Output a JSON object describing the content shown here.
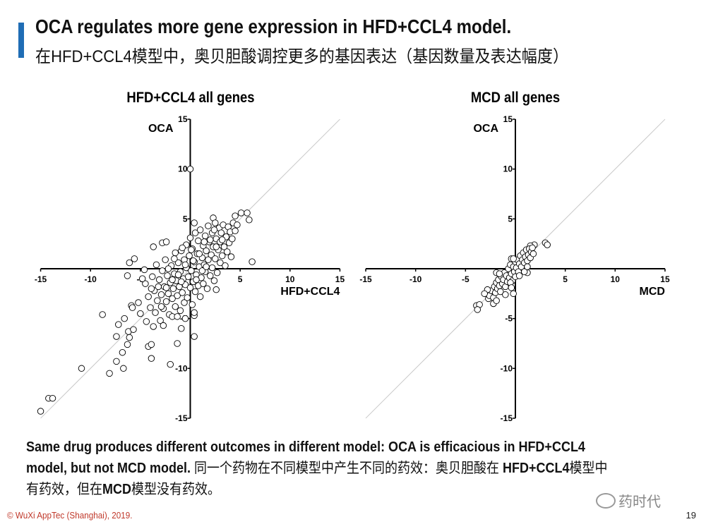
{
  "header": {
    "title": "OCA regulates more gene expression in HFD+CCL4 model.",
    "subtitle": "在HFD+CCL4模型中，奥贝胆酸调控更多的基因表达（基因数量及表达幅度）"
  },
  "colors": {
    "accent": "#1f6db5",
    "footer": "#c0392b",
    "identity_line": "#c8c8c8"
  },
  "chart_data": [
    {
      "type": "scatter",
      "title": "HFD+CCL4 all genes",
      "xlabel": "HFD+CCL4",
      "ylabel": "OCA",
      "xlim": [
        -15,
        15
      ],
      "ylim": [
        -15,
        15
      ],
      "xticks": [
        "-15",
        "-10",
        "-5",
        "5",
        "10",
        "15"
      ],
      "yticks": [
        "15",
        "10",
        "5",
        "-5",
        "-10",
        "-15"
      ],
      "identity_line": true,
      "points": [
        [
          0,
          10
        ],
        [
          -15,
          -14.3
        ],
        [
          -14.2,
          -13
        ],
        [
          -13.8,
          -13
        ],
        [
          -10.9,
          -10
        ],
        [
          -8.1,
          -10.5
        ],
        [
          -6.7,
          -10
        ],
        [
          -7.4,
          -9.3
        ],
        [
          -6.8,
          -8.4
        ],
        [
          -8.8,
          -4.6
        ],
        [
          -2.0,
          -9.6
        ],
        [
          -3.9,
          -9
        ],
        [
          -4.2,
          -7.8
        ],
        [
          -3.9,
          -7.6
        ],
        [
          -1.3,
          -7.5
        ],
        [
          0.4,
          -6.8
        ],
        [
          -0.9,
          -6.0
        ],
        [
          -7.4,
          -6.8
        ],
        [
          -6.3,
          -7.6
        ],
        [
          -6.1,
          -6.9
        ],
        [
          -7.2,
          -5.6
        ],
        [
          -6.6,
          -5.0
        ],
        [
          -5.9,
          -3.7
        ],
        [
          -5.8,
          -3.9
        ],
        [
          -6.2,
          -6.3
        ],
        [
          -5.7,
          -6.1
        ],
        [
          6.2,
          0.7
        ],
        [
          5.1,
          5.6
        ],
        [
          5.7,
          5.6
        ],
        [
          5.9,
          4.9
        ],
        [
          4.5,
          5.3
        ],
        [
          2.3,
          5.1
        ],
        [
          0.4,
          4.6
        ],
        [
          -6.1,
          0.6
        ],
        [
          -5.6,
          1.0
        ],
        [
          -6.3,
          -0.7
        ],
        [
          -3.7,
          2.2
        ],
        [
          -2.8,
          2.6
        ],
        [
          -2.4,
          2.7
        ],
        [
          2.6,
          -2.1
        ],
        [
          0.4,
          -4.7
        ],
        [
          -0.5,
          -5.0
        ],
        [
          -4.5,
          -1.5
        ],
        [
          -4.2,
          -2.8
        ],
        [
          -4,
          -3.9
        ],
        [
          -3.8,
          -0.8
        ],
        [
          -3.6,
          -2.2
        ],
        [
          -3.5,
          -4.4
        ],
        [
          -3.4,
          0.4
        ],
        [
          -3.3,
          -3.2
        ],
        [
          -3.1,
          -1.1
        ],
        [
          -3,
          -5.2
        ],
        [
          -2.9,
          -2.6
        ],
        [
          -2.8,
          -0.2
        ],
        [
          -2.7,
          -4
        ],
        [
          -2.6,
          -1.8
        ],
        [
          -2.5,
          0.9
        ],
        [
          -2.4,
          -3.3
        ],
        [
          -2.3,
          -0.7
        ],
        [
          -2.2,
          -2.5
        ],
        [
          -2.1,
          -4.6
        ],
        [
          -2,
          -1.4
        ],
        [
          -1.9,
          0.3
        ],
        [
          -1.8,
          -3
        ],
        [
          -1.7,
          -2
        ],
        [
          -1.6,
          -0.5
        ],
        [
          -1.5,
          1.6
        ],
        [
          -1.5,
          -3.8
        ],
        [
          -1.4,
          -1.2
        ],
        [
          -1.3,
          -2.7
        ],
        [
          -1.2,
          0.6
        ],
        [
          -1.1,
          -1.8
        ],
        [
          -1,
          -4.2
        ],
        [
          -1,
          -0.3
        ],
        [
          -0.9,
          1.8
        ],
        [
          -0.8,
          -2.4
        ],
        [
          -0.7,
          -1
        ],
        [
          -0.6,
          0.9
        ],
        [
          -0.6,
          -3.4
        ],
        [
          -0.5,
          -1.6
        ],
        [
          -0.4,
          2.4
        ],
        [
          -0.4,
          0.1
        ],
        [
          -0.3,
          -2.9
        ],
        [
          -0.2,
          -0.8
        ],
        [
          -0.1,
          1.3
        ],
        [
          0,
          -1.9
        ],
        [
          0,
          3.1
        ],
        [
          0.1,
          -0.2
        ],
        [
          0.2,
          -3.6
        ],
        [
          0.2,
          2
        ],
        [
          0.3,
          -1.3
        ],
        [
          0.4,
          0.7
        ],
        [
          0.5,
          -2.3
        ],
        [
          0.5,
          3.6
        ],
        [
          0.6,
          -0.6
        ],
        [
          0.7,
          1.5
        ],
        [
          0.8,
          -1.7
        ],
        [
          0.8,
          2.8
        ],
        [
          0.9,
          0.2
        ],
        [
          1,
          -2.8
        ],
        [
          1,
          3.9
        ],
        [
          1.1,
          -0.9
        ],
        [
          1.2,
          1.1
        ],
        [
          1.3,
          2.3
        ],
        [
          1.3,
          -1.5
        ],
        [
          1.4,
          0.4
        ],
        [
          1.5,
          3.3
        ],
        [
          1.5,
          -0.3
        ],
        [
          1.6,
          1.8
        ],
        [
          1.7,
          -2
        ],
        [
          1.8,
          0.9
        ],
        [
          1.8,
          4.3
        ],
        [
          1.9,
          2.7
        ],
        [
          2,
          -0.7
        ],
        [
          2.1,
          1.4
        ],
        [
          2.2,
          3.6
        ],
        [
          2.2,
          0.1
        ],
        [
          2.3,
          2.2
        ],
        [
          2.4,
          -1.2
        ],
        [
          2.5,
          4.6
        ],
        [
          2.5,
          1
        ],
        [
          2.6,
          3
        ],
        [
          2.7,
          -0.4
        ],
        [
          2.8,
          1.9
        ],
        [
          2.9,
          4.1
        ],
        [
          3,
          0.6
        ],
        [
          3,
          2.7
        ],
        [
          3.1,
          3.6
        ],
        [
          3.2,
          1.3
        ],
        [
          3.3,
          4.4
        ],
        [
          3.4,
          2.2
        ],
        [
          3.5,
          0.3
        ],
        [
          3.6,
          3.2
        ],
        [
          3.7,
          1.7
        ],
        [
          3.8,
          4.2
        ],
        [
          3.9,
          2.6
        ],
        [
          4,
          3.7
        ],
        [
          4.1,
          1.2
        ],
        [
          4.2,
          3
        ],
        [
          4.3,
          4.6
        ],
        [
          4.5,
          3.8
        ],
        [
          4.7,
          4.4
        ],
        [
          -3.9,
          -2
        ],
        [
          -3.2,
          -1.8
        ],
        [
          -2.4,
          -1.9
        ],
        [
          -1.8,
          -1.1
        ],
        [
          -1.2,
          -0.6
        ],
        [
          -0.5,
          0.4
        ],
        [
          0.3,
          0.8
        ],
        [
          0.9,
          1.5
        ],
        [
          1.4,
          2.7
        ],
        [
          2,
          2.9
        ],
        [
          2.6,
          2.2
        ],
        [
          3.2,
          2.9
        ],
        [
          -2.2,
          0
        ],
        [
          -1.6,
          1
        ],
        [
          -0.9,
          -1.3
        ],
        [
          0.6,
          -1.1
        ],
        [
          1.2,
          -0.2
        ],
        [
          -4.4,
          -5.3
        ],
        [
          -3.7,
          -5.8
        ],
        [
          -2.7,
          -5.7
        ],
        [
          -1.8,
          -4.8
        ],
        [
          0.4,
          -4.4
        ],
        [
          -5.2,
          -3.4
        ],
        [
          -5,
          -4.5
        ],
        [
          -4.8,
          -1
        ],
        [
          -4.6,
          -0.1
        ],
        [
          1.6,
          0.2
        ],
        [
          0.1,
          1.9
        ],
        [
          -0.8,
          2.1
        ],
        [
          2.4,
          3.9
        ],
        [
          -2.9,
          -3.8
        ],
        [
          -1.3,
          -4.8
        ]
      ]
    },
    {
      "type": "scatter",
      "title": "MCD all genes",
      "xlabel": "MCD",
      "ylabel": "OCA",
      "xlim": [
        -15,
        15
      ],
      "ylim": [
        -15,
        15
      ],
      "xticks": [
        "-15",
        "-10",
        "-5",
        "5",
        "10",
        "15"
      ],
      "yticks": [
        "15",
        "10",
        "5",
        "-5",
        "-10",
        "-15"
      ],
      "identity_line": true,
      "points": [
        [
          3.0,
          2.6
        ],
        [
          3.2,
          2.4
        ],
        [
          -3.9,
          -3.7
        ],
        [
          -3.6,
          -3.6
        ],
        [
          -3.8,
          -4.1
        ],
        [
          1.9,
          2.4
        ],
        [
          1.5,
          2.3
        ],
        [
          -0.2,
          -2.5
        ],
        [
          -2.2,
          -3.5
        ],
        [
          -2.9,
          -2.5
        ],
        [
          -2.7,
          -3.0
        ],
        [
          -1.9,
          -0.4
        ],
        [
          1.2,
          -0.4
        ],
        [
          -0.4,
          1.0
        ],
        [
          -2.6,
          -2.7
        ],
        [
          -2.4,
          -2.2
        ],
        [
          -2.2,
          -2.9
        ],
        [
          -2.1,
          -1.8
        ],
        [
          -2,
          -2.4
        ],
        [
          -1.9,
          -1.4
        ],
        [
          -1.8,
          -2
        ],
        [
          -1.7,
          -1.1
        ],
        [
          -1.6,
          -1.7
        ],
        [
          -1.5,
          -2.3
        ],
        [
          -1.4,
          -0.8
        ],
        [
          -1.3,
          -1.5
        ],
        [
          -1.2,
          -1.1
        ],
        [
          -1.1,
          -0.4
        ],
        [
          -1,
          -1.8
        ],
        [
          -0.9,
          -0.7
        ],
        [
          -0.8,
          -1.3
        ],
        [
          -0.7,
          0
        ],
        [
          -0.6,
          -0.9
        ],
        [
          -0.5,
          0.4
        ],
        [
          -0.4,
          -0.5
        ],
        [
          -0.3,
          -1.2
        ],
        [
          -0.2,
          0.2
        ],
        [
          -0.1,
          -0.3
        ],
        [
          0,
          0.7
        ],
        [
          0,
          -0.8
        ],
        [
          0.1,
          0.1
        ],
        [
          0.2,
          0.9
        ],
        [
          0.3,
          -0.3
        ],
        [
          0.4,
          0.5
        ],
        [
          0.5,
          1.3
        ],
        [
          0.6,
          0.2
        ],
        [
          0.7,
          0.9
        ],
        [
          0.8,
          1.6
        ],
        [
          0.9,
          0.6
        ],
        [
          1,
          1.2
        ],
        [
          1.1,
          1.9
        ],
        [
          1.2,
          0.8
        ],
        [
          1.3,
          1.4
        ],
        [
          1.4,
          2
        ],
        [
          1.5,
          1.1
        ],
        [
          1.6,
          1.7
        ],
        [
          1.7,
          2.1
        ],
        [
          1.8,
          1.5
        ],
        [
          0.4,
          -0.7
        ],
        [
          -0.5,
          -1.4
        ],
        [
          -1.6,
          -0.5
        ],
        [
          0.9,
          -0.3
        ],
        [
          -0.2,
          1
        ],
        [
          1.2,
          0.2
        ],
        [
          -2.8,
          -2.1
        ],
        [
          -3.1,
          -2.5
        ],
        [
          -1.9,
          -3.2
        ],
        [
          -1,
          -2.6
        ],
        [
          -0.4,
          -1.9
        ]
      ]
    }
  ],
  "conclusion": {
    "en": "Same drug produces different outcomes in different model: OCA is efficacious in HFD+CCL4 model, but not MCD model.",
    "cn1": "同一个药物在不同模型中产生不同的药效：奥贝胆酸在",
    "line3_en": "HFD+CCL4",
    "cn2": "模型中有药效，但在",
    "line3_en2": "MCD",
    "cn3": "模型没有药效。"
  },
  "footer": {
    "copyright": "© WuXi AppTec (Shanghai), 2019.",
    "page_number": "19"
  },
  "watermark": {
    "text": "药时代"
  }
}
